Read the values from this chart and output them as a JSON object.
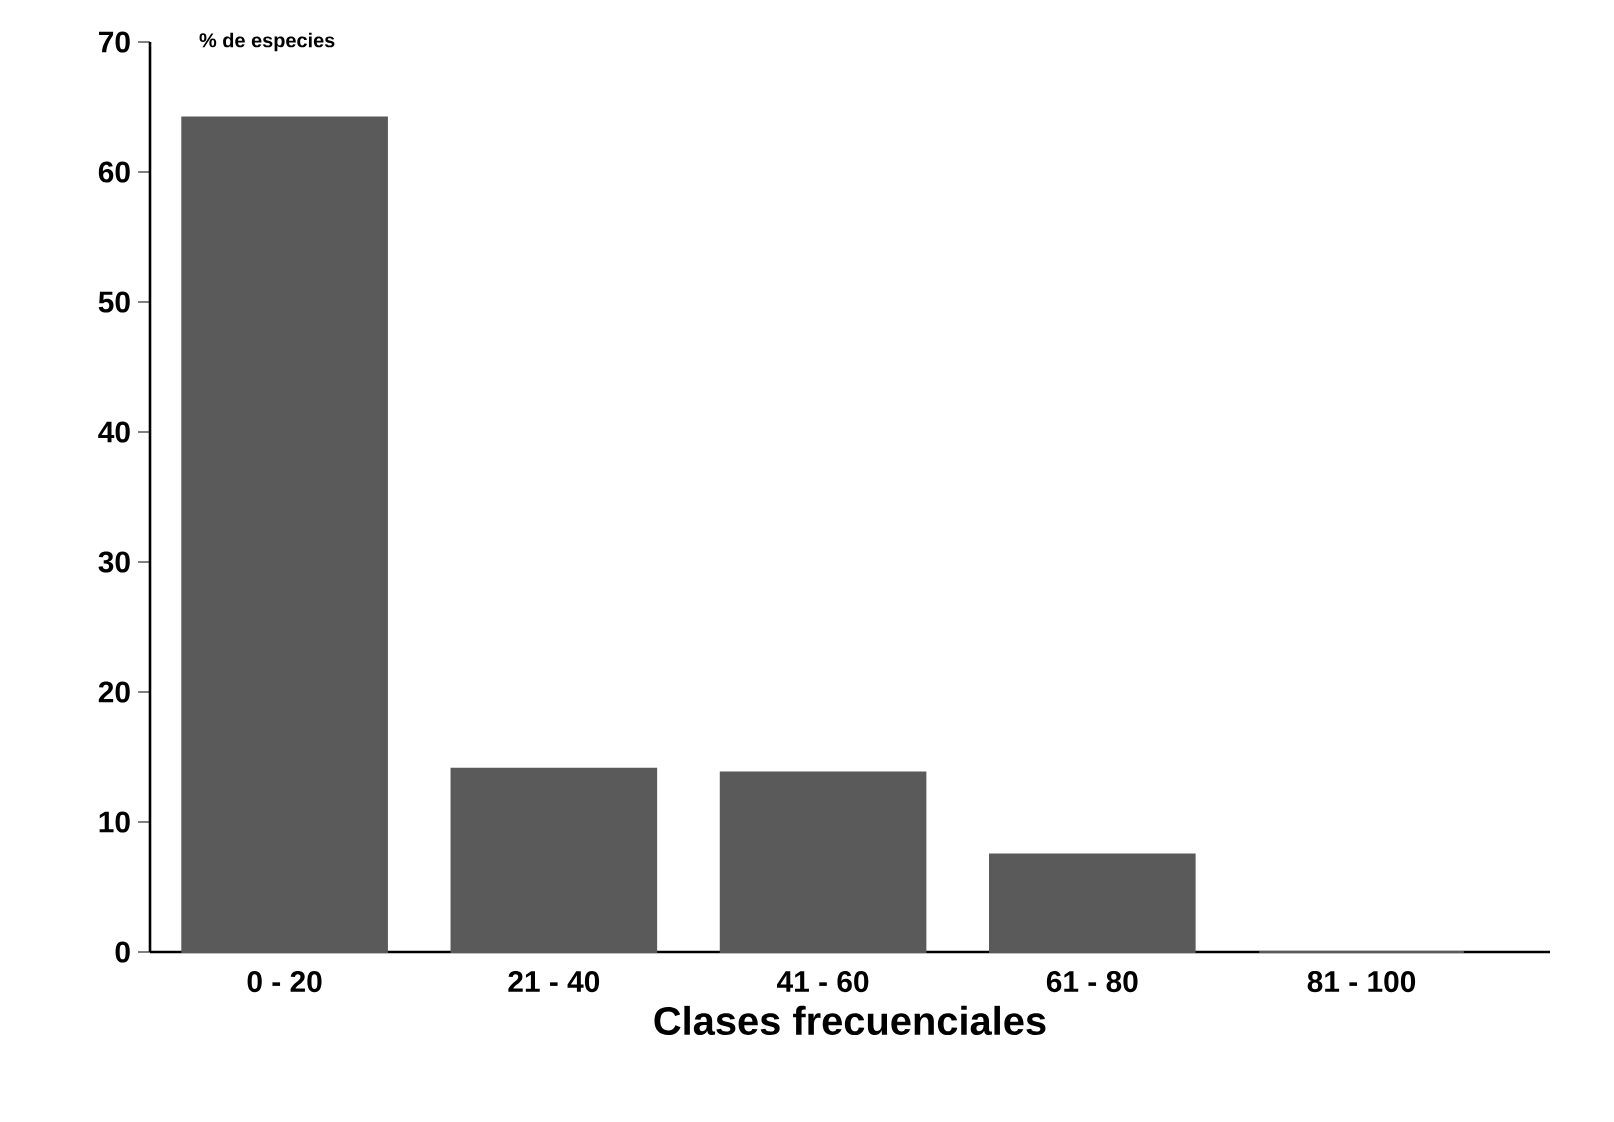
{
  "chart_data": {
    "type": "bar",
    "ylabel": "% de especies",
    "xlabel": "Clases frecuenciales",
    "categories": [
      "0 - 20",
      "21 - 40",
      "41 - 60",
      "61 - 80",
      "81 - 100"
    ],
    "values": [
      64.2,
      14.1,
      13.8,
      7.5,
      0
    ],
    "color": "#5a5a5a",
    "ylim": [
      0,
      70
    ],
    "yticks": [
      0,
      10,
      20,
      30,
      40,
      50,
      60,
      70
    ]
  }
}
